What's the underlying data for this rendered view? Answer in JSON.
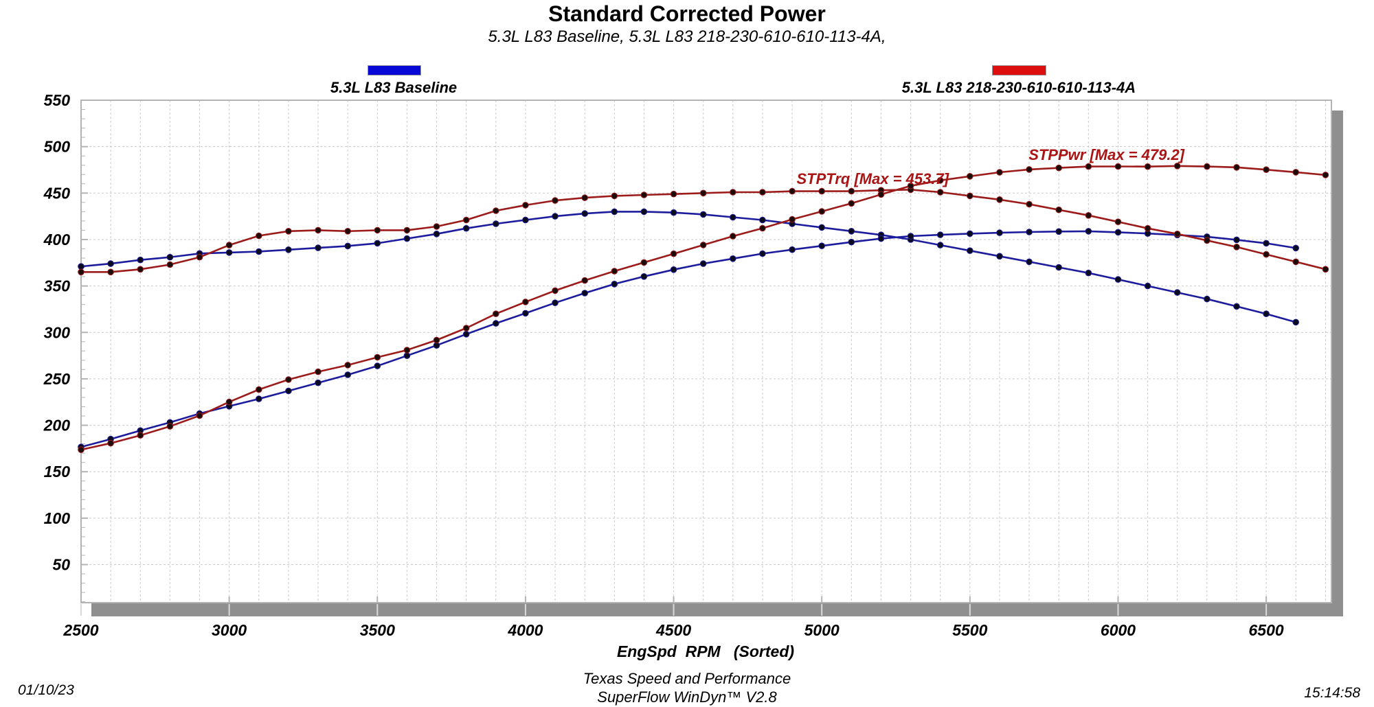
{
  "header": {
    "title": "Standard Corrected Power",
    "subtitle": "5.3L L83 Baseline, 5.3L L83 218-230-610-610-113-4A,"
  },
  "legend": {
    "baseline": {
      "label": "5.3L L83 Baseline",
      "swatch_color": "#0707d6"
    },
    "cam": {
      "label": "5.3L L83 218-230-610-610-113-4A",
      "swatch_color": "#dd0e0e"
    }
  },
  "footer": {
    "xaxis_title": "EngSpd  RPM   (Sorted)",
    "shop": "Texas Speed and Performance",
    "software": "SuperFlow WinDyn™ V2.8",
    "date": "01/10/23",
    "time": "15:14:58"
  },
  "chart_data": {
    "type": "line",
    "title": "Standard Corrected Power",
    "subtitle": "5.3L L83 Baseline, 5.3L L83 218-230-610-610-113-4A,",
    "xlabel": "EngSpd  RPM   (Sorted)",
    "ylabel": "",
    "xlim": [
      2500,
      6720
    ],
    "ylim": [
      9,
      550
    ],
    "x_ticks": [
      2500,
      3000,
      3500,
      4000,
      4500,
      5000,
      5500,
      6000,
      6500
    ],
    "y_ticks": [
      50,
      100,
      150,
      200,
      250,
      300,
      350,
      400,
      450,
      500,
      550
    ],
    "x_minor_step": 100,
    "y_minor_tick_step": 10,
    "grid": "dashed",
    "legend_position": "top",
    "colors": {
      "baseline_line": "#1c1c9c",
      "baseline_marker": "#0b0b1c",
      "cam_line": "#9c1b1b",
      "cam_marker": "#1c0b0b",
      "annotation": "#a91414",
      "grid": "#c9c9c9",
      "border": "#b3b3b3",
      "shadow": "#8f8f8f"
    },
    "series": [
      {
        "name": "STPTrq — 5.3L L83 Baseline",
        "color": "#1c1c9c",
        "x": [
          2500,
          2600,
          2700,
          2800,
          2900,
          3000,
          3100,
          3200,
          3300,
          3400,
          3500,
          3600,
          3700,
          3800,
          3900,
          4000,
          4100,
          4200,
          4300,
          4400,
          4500,
          4600,
          4700,
          4800,
          4900,
          5000,
          5100,
          5200,
          5300,
          5400,
          5500,
          5600,
          5700,
          5800,
          5900,
          6000,
          6100,
          6200,
          6300,
          6400,
          6500,
          6600
        ],
        "y": [
          371,
          374,
          378,
          381,
          385,
          386,
          387,
          389,
          391,
          393,
          396,
          401,
          406,
          412,
          417,
          421,
          425,
          428,
          430,
          430,
          429,
          427,
          424,
          421,
          417,
          413,
          409,
          405,
          400,
          394,
          388,
          382,
          376,
          370,
          364,
          357,
          350,
          343,
          336,
          328,
          320,
          311
        ]
      },
      {
        "name": "STPPwr — 5.3L L83 Baseline",
        "color": "#1c1c9c",
        "x": [
          2500,
          2600,
          2700,
          2800,
          2900,
          3000,
          3100,
          3200,
          3300,
          3400,
          3500,
          3600,
          3700,
          3800,
          3900,
          4000,
          4100,
          4200,
          4300,
          4400,
          4500,
          4600,
          4700,
          4800,
          4900,
          5000,
          5100,
          5200,
          5300,
          5400,
          5500,
          5600,
          5700,
          5800,
          5900,
          6000,
          6100,
          6200,
          6300,
          6400,
          6500,
          6600
        ],
        "y": [
          176.6,
          185.1,
          194.3,
          203.1,
          212.6,
          220.5,
          228.4,
          237.0,
          245.7,
          254.4,
          263.9,
          274.9,
          286.0,
          298.1,
          309.7,
          320.6,
          331.8,
          342.3,
          352.1,
          360.2,
          367.6,
          374.0,
          379.4,
          384.8,
          389.1,
          393.2,
          397.2,
          401.0,
          403.7,
          405.1,
          406.3,
          407.3,
          408.1,
          408.6,
          408.9,
          407.8,
          406.5,
          404.9,
          403.0,
          399.7,
          396.0,
          390.8
        ]
      },
      {
        "name": "STPTrq — 5.3L L83 218-230-610-610-113-4A",
        "color": "#9c1b1b",
        "max_label": "STPTrq [Max = 453.7]",
        "max_value": 453.7,
        "x": [
          2500,
          2600,
          2700,
          2800,
          2900,
          3000,
          3100,
          3200,
          3300,
          3400,
          3500,
          3600,
          3700,
          3800,
          3900,
          4000,
          4100,
          4200,
          4300,
          4400,
          4500,
          4600,
          4700,
          4800,
          4900,
          5000,
          5100,
          5200,
          5300,
          5400,
          5500,
          5600,
          5700,
          5800,
          5900,
          6000,
          6100,
          6200,
          6300,
          6400,
          6500,
          6600,
          6700
        ],
        "y": [
          365,
          365,
          368,
          373,
          381,
          394,
          404,
          409,
          410,
          409,
          410,
          410,
          414,
          421,
          431,
          437,
          442,
          445,
          447,
          448,
          449,
          450,
          451,
          451,
          452,
          452,
          452,
          453,
          453.7,
          451,
          447,
          443,
          438,
          432,
          426,
          419,
          412,
          406,
          399,
          392,
          384,
          376,
          368
        ]
      },
      {
        "name": "STPPwr — 5.3L L83 218-230-610-610-113-4A",
        "color": "#9c1b1b",
        "max_label": "STPPwr [Max = 479.2]",
        "max_value": 479.2,
        "x": [
          2500,
          2600,
          2700,
          2800,
          2900,
          3000,
          3100,
          3200,
          3300,
          3400,
          3500,
          3600,
          3700,
          3800,
          3900,
          4000,
          4100,
          4200,
          4300,
          4400,
          4500,
          4600,
          4700,
          4800,
          4900,
          5000,
          5100,
          5200,
          5300,
          5400,
          5500,
          5600,
          5700,
          5800,
          5900,
          6000,
          6100,
          6200,
          6300,
          6400,
          6500,
          6600,
          6700
        ],
        "y": [
          173.7,
          180.7,
          189.2,
          198.9,
          210.4,
          225.1,
          238.5,
          249.2,
          257.6,
          264.8,
          273.2,
          281.0,
          291.7,
          304.6,
          320.0,
          332.8,
          345.0,
          355.9,
          366.0,
          375.3,
          384.7,
          394.1,
          403.6,
          412.2,
          421.7,
          430.3,
          438.9,
          448.5,
          457.8,
          463.7,
          468.1,
          472.4,
          475.4,
          477.1,
          478.6,
          478.7,
          478.5,
          479.2,
          478.6,
          477.7,
          475.2,
          472.5,
          469.5
        ]
      }
    ],
    "annotations": [
      {
        "text": "STPTrq [Max = 453.7]",
        "rpm": 4915,
        "value": 465
      },
      {
        "text": "STPPwr [Max = 479.2]",
        "rpm": 5698,
        "value": 491
      }
    ]
  }
}
